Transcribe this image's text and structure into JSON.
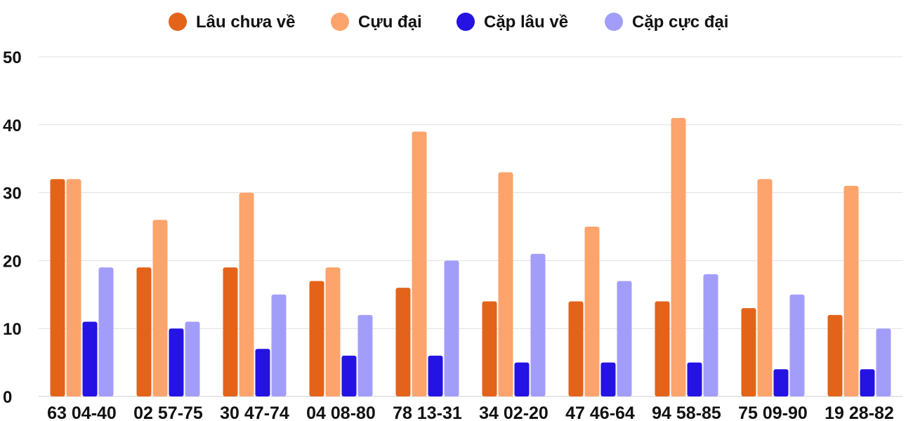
{
  "chart_data": {
    "type": "bar",
    "categories": [
      "63 04-40",
      "02 57-75",
      "30 47-74",
      "04 08-80",
      "78 13-31",
      "34 02-20",
      "47 46-64",
      "94 58-85",
      "75 09-90",
      "19 28-82"
    ],
    "series": [
      {
        "name": "Lâu chưa về",
        "color": "#E4631A",
        "values": [
          32,
          19,
          19,
          17,
          16,
          14,
          14,
          14,
          13,
          12
        ]
      },
      {
        "name": "Cựu đại",
        "color": "#FCA46C",
        "values": [
          32,
          26,
          30,
          19,
          39,
          33,
          25,
          41,
          32,
          31
        ]
      },
      {
        "name": "Cặp lâu về",
        "color": "#2413E3",
        "values": [
          11,
          10,
          7,
          6,
          6,
          5,
          5,
          5,
          4,
          4
        ]
      },
      {
        "name": "Cặp cực đại",
        "color": "#A39DFA",
        "values": [
          19,
          11,
          15,
          12,
          20,
          21,
          17,
          18,
          15,
          10
        ]
      }
    ],
    "ylim": [
      0,
      50
    ],
    "yticks": [
      0,
      10,
      20,
      30,
      40,
      50
    ],
    "grid": true,
    "legend_position": "top-center",
    "title": "",
    "xlabel": "",
    "ylabel": ""
  }
}
